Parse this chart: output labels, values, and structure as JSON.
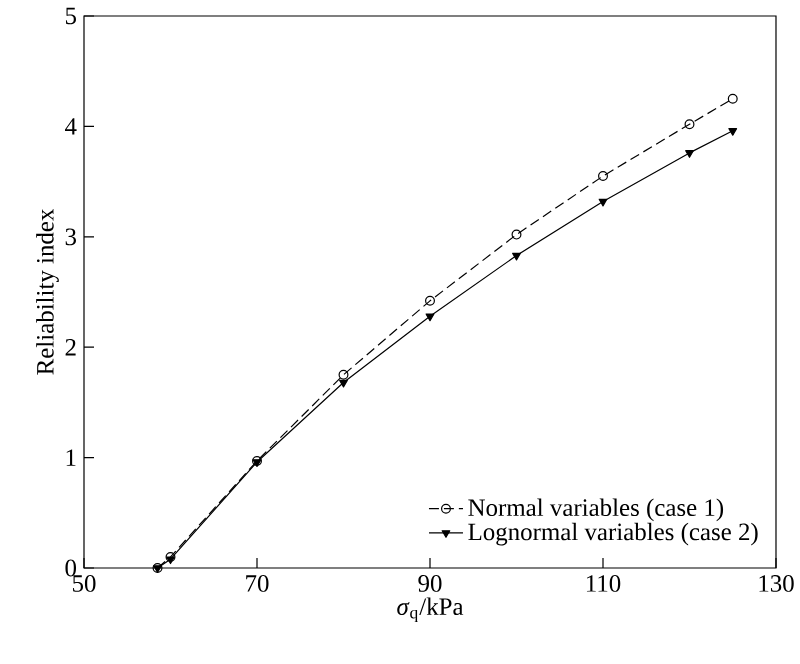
{
  "chart_data": {
    "type": "line",
    "xlabel": "*σ*$_{q}$/kPa",
    "ylabel": "Reliability index",
    "x": [
      58.5,
      60,
      70,
      80,
      90,
      100,
      110,
      120,
      125
    ],
    "series": [
      {
        "name": "Normal variables (case 1)",
        "color": "#000000",
        "marker": "circle",
        "line_style": "dashed",
        "values": [
          0,
          0.1,
          0.97,
          1.75,
          2.42,
          3.02,
          3.55,
          4.02,
          4.25
        ]
      },
      {
        "name": "Lognormal variables (case 2)",
        "color": "#000000",
        "marker": "triangle",
        "line_style": "solid",
        "values": [
          0,
          0.08,
          0.96,
          1.68,
          2.28,
          2.83,
          3.32,
          3.76,
          3.96
        ]
      }
    ],
    "xlim": [
      50,
      130
    ],
    "xticks": [
      50,
      70,
      90,
      110,
      130
    ],
    "ylim": [
      0,
      5
    ],
    "yticks": [
      0,
      1,
      2,
      3,
      4,
      5
    ],
    "legend": "bottom right"
  }
}
